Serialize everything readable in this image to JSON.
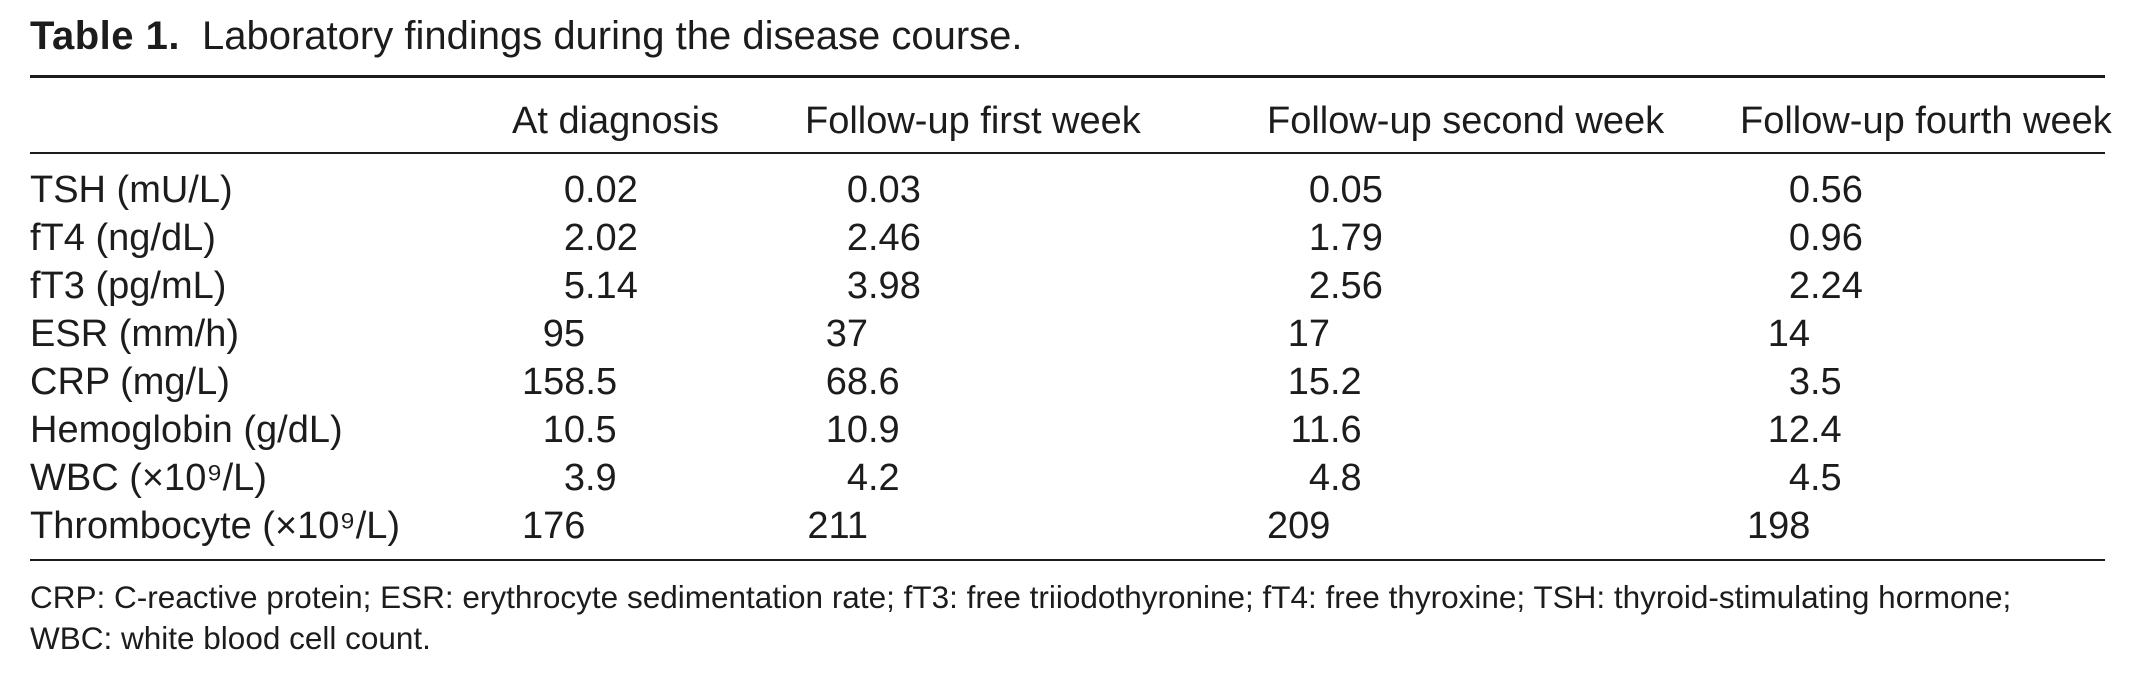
{
  "title": {
    "label": "Table 1.",
    "text": "Laboratory findings during the disease course."
  },
  "table": {
    "columns": [
      "",
      "At diagnosis",
      "Follow-up first week",
      "Follow-up second week",
      "Follow-up fourth week"
    ],
    "rows": [
      {
        "label": "TSH (mU/L)",
        "values": [
          "0.02",
          "0.03",
          "0.05",
          "0.56"
        ]
      },
      {
        "label": "fT4 (ng/dL)",
        "values": [
          "2.02",
          "2.46",
          "1.79",
          "0.96"
        ]
      },
      {
        "label": "fT3 (pg/mL)",
        "values": [
          "5.14",
          "3.98",
          "2.56",
          "2.24"
        ]
      },
      {
        "label": "ESR (mm/h)",
        "values": [
          "95",
          "37",
          "17",
          "14"
        ]
      },
      {
        "label": "CRP (mg/L)",
        "values": [
          "158.5",
          "68.6",
          "15.2",
          "3.5"
        ]
      },
      {
        "label": "Hemoglobin (g/dL)",
        "values": [
          "10.5",
          "10.9",
          "11.6",
          "12.4"
        ]
      },
      {
        "label": "WBC (×10⁹/L)",
        "values": [
          "3.9",
          "4.2",
          "4.8",
          "4.5"
        ]
      },
      {
        "label": "Thrombocyte (×10⁹/L)",
        "values": [
          "176",
          "211",
          "209",
          "198"
        ]
      }
    ]
  },
  "footnote": {
    "line1": "CRP: C-reactive protein; ESR: erythrocyte sedimentation rate; fT3: free triiodothyronine; fT4: free thyroxine; TSH: thyroid-stimulating hormone;",
    "line2": "WBC: white blood cell count."
  }
}
